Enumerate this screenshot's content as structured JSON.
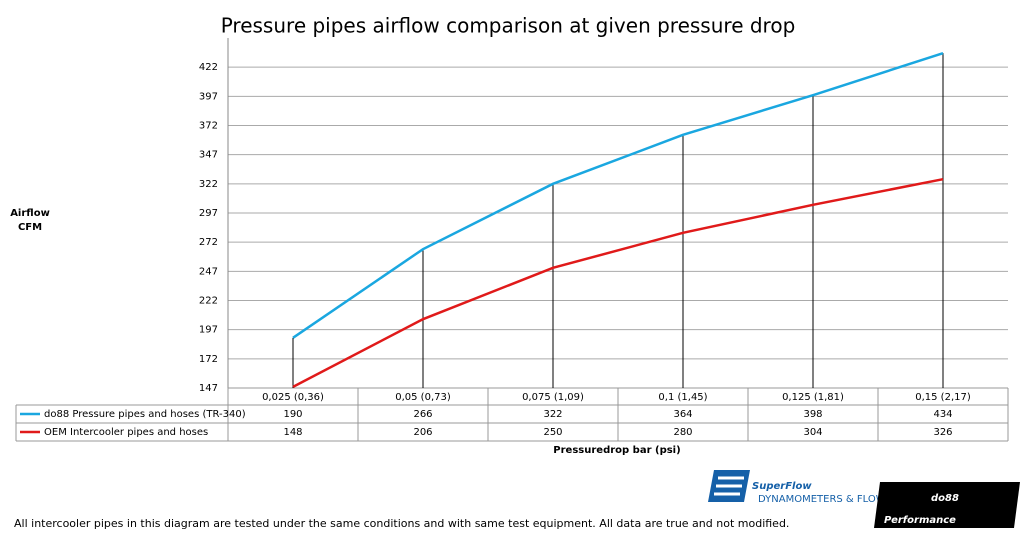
{
  "chart_data": {
    "type": "line",
    "title": "Pressure pipes airflow comparison at given pressure drop",
    "y_label": [
      "Airflow",
      "CFM"
    ],
    "x_label": "Pressuredrop bar (psi)",
    "categories": [
      "0,025 (0,36)",
      "0,05 (0,73)",
      "0,075 (1,09)",
      "0,1 (1,45)",
      "0,125 (1,81)",
      "0,15 (2,17)"
    ],
    "series": [
      {
        "name": "do88 Pressure pipes and hoses (TR-340)",
        "color": "#1aa7e0",
        "values": [
          190,
          266,
          322,
          364,
          398,
          434
        ]
      },
      {
        "name": "OEM Intercooler pipes and hoses",
        "color": "#e01a1a",
        "values": [
          148,
          206,
          250,
          280,
          304,
          326
        ]
      }
    ],
    "ylim": [
      147,
      447
    ],
    "yticks": [
      147,
      172,
      197,
      222,
      247,
      272,
      297,
      322,
      347,
      372,
      397,
      422
    ],
    "grid": true,
    "drop_lines": true,
    "footnote": "All intercooler pipes in this diagram are tested under the same conditions and with same test equipment. All data are true and not modified.",
    "logos": {
      "superflow": "SuperFlow",
      "superflow_tagline": "DYNAMOMETERS & FLOWBENCHES",
      "do88": "do88",
      "do88_tagline": "Performance"
    }
  }
}
